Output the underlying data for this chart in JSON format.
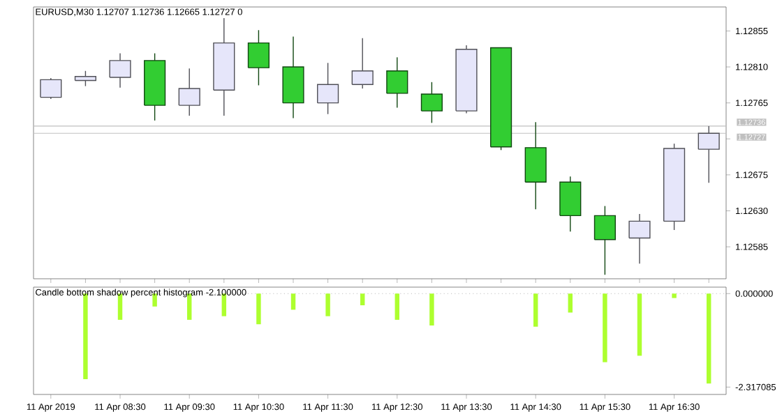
{
  "chart_data": [
    {
      "type": "candlestick",
      "title": "EURUSD,M30  1.12707 1.12736 1.12665 1.12727  0",
      "categories": [
        null,
        null,
        null,
        null,
        null,
        null,
        null,
        null,
        null,
        null,
        null,
        null,
        null,
        null,
        null,
        null,
        null,
        null,
        null,
        null
      ],
      "ohlc": [
        [
          1.12772,
          1.12796,
          1.1277,
          1.12794
        ],
        [
          1.12793,
          1.12805,
          1.12786,
          1.12798
        ],
        [
          1.12797,
          1.12827,
          1.12784,
          1.12818
        ],
        [
          1.12818,
          1.12827,
          1.12743,
          1.12762
        ],
        [
          1.12762,
          1.12808,
          1.12749,
          1.12783
        ],
        [
          1.12781,
          1.12871,
          1.12749,
          1.1284
        ],
        [
          1.1284,
          1.12856,
          1.12787,
          1.12809
        ],
        [
          1.1281,
          1.12848,
          1.12746,
          1.12765
        ],
        [
          1.12765,
          1.12815,
          1.12751,
          1.12788
        ],
        [
          1.12788,
          1.12846,
          1.12783,
          1.12805
        ],
        [
          1.12805,
          1.12822,
          1.12759,
          1.12777
        ],
        [
          1.12776,
          1.12791,
          1.1274,
          1.12755
        ],
        [
          1.12755,
          1.12837,
          1.12752,
          1.12832
        ],
        [
          1.12834,
          1.12834,
          1.12706,
          1.1271
        ],
        [
          1.12709,
          1.12741,
          1.12632,
          1.12666
        ],
        [
          1.12666,
          1.12673,
          1.12604,
          1.12624
        ],
        [
          1.12624,
          1.12636,
          1.1255,
          1.12594
        ],
        [
          1.12596,
          1.12626,
          1.12564,
          1.12617
        ],
        [
          1.12617,
          1.12714,
          1.12606,
          1.12708
        ],
        [
          1.12707,
          1.12736,
          1.12665,
          1.12727
        ]
      ],
      "colors": [
        "#e6e6fa",
        "#e6e6fa",
        "#e6e6fa",
        "#32cd32",
        "#e6e6fa",
        "#e6e6fa",
        "#32cd32",
        "#32cd32",
        "#e6e6fa",
        "#e6e6fa",
        "#32cd32",
        "#32cd32",
        "#e6e6fa",
        "#32cd32",
        "#32cd32",
        "#32cd32",
        "#32cd32",
        "#e6e6fa",
        "#e6e6fa",
        "#e6e6fa"
      ],
      "ylim": [
        1.12545,
        1.12885
      ],
      "yticks": [
        {
          "value": 1.12855,
          "label": "1.12855"
        },
        {
          "value": 1.1281,
          "label": "1.12810"
        },
        {
          "value": 1.12765,
          "label": "1.12765"
        },
        {
          "value": 1.1272,
          "label": null
        },
        {
          "value": 1.12675,
          "label": "1.12675"
        },
        {
          "value": 1.1263,
          "label": "1.12630"
        },
        {
          "value": 1.12585,
          "label": "1.12585"
        }
      ],
      "ref_lines": [
        {
          "axis": "y",
          "value": 1.12736,
          "label": "1.12736",
          "color": "#c0c0c0"
        },
        {
          "axis": "y",
          "value": 1.12727,
          "label": "1.12727",
          "color": "#c0c0c0"
        }
      ],
      "tick_labels": "y"
    },
    {
      "type": "bar",
      "title": "Candle bottom shadow percent histogram -2.100000",
      "categories": [
        "11 Apr 2019",
        null,
        "11 Apr 08:30",
        null,
        "11 Apr 09:30",
        null,
        "11 Apr 10:30",
        null,
        "11 Apr 11:30",
        null,
        "11 Apr 12:30",
        null,
        "11 Apr 13:30",
        null,
        "11 Apr 14:30",
        null,
        "11 Apr 15:30",
        null,
        "11 Apr 16:30",
        null
      ],
      "values": [
        null,
        -2.12,
        -0.65,
        -0.32,
        -0.65,
        -0.56,
        -0.76,
        -0.4,
        -0.56,
        -0.29,
        -0.65,
        -0.79,
        0,
        0,
        -0.82,
        -0.47,
        -1.7,
        -1.54,
        -0.11,
        -2.23
      ],
      "color": "#adff2f",
      "ylim": [
        -2.5,
        0.16
      ],
      "yticks": [
        {
          "value": 0,
          "label": "0.000000"
        },
        {
          "value": -2.317085,
          "label": "-2.317085"
        }
      ],
      "ref_lines": [
        {
          "axis": "y",
          "value": 0,
          "color": "#c0c0c0",
          "line_style": "dotted"
        }
      ]
    }
  ]
}
